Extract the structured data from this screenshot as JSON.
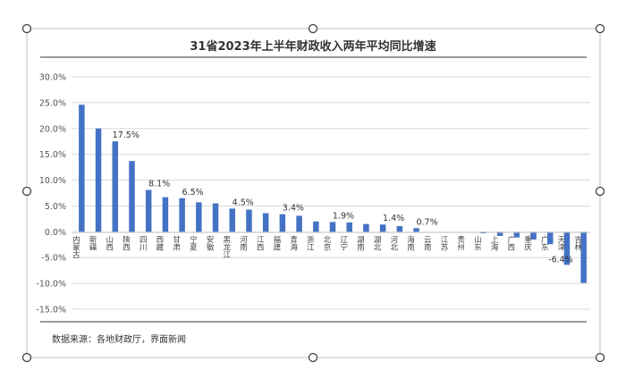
{
  "chart_data": {
    "type": "bar",
    "title": "31省2023年上半年财政收入两年平均同比增速",
    "source": "数据来源：各地财政厅，界面新闻",
    "categories": [
      "内蒙古",
      "新疆",
      "山西",
      "陕西",
      "四川",
      "西藏",
      "甘肃",
      "宁夏",
      "安徽",
      "黑龙江",
      "河南",
      "江西",
      "福建",
      "青海",
      "浙江",
      "北京",
      "辽宁",
      "湖南",
      "湖北",
      "河北",
      "海南",
      "云南",
      "江苏",
      "贵州",
      "山东",
      "上海",
      "广西",
      "重庆",
      "广东",
      "天津",
      "吉林"
    ],
    "values": [
      24.6,
      20.0,
      17.5,
      13.7,
      8.1,
      6.7,
      6.5,
      5.7,
      5.5,
      4.5,
      4.3,
      3.6,
      3.4,
      3.1,
      2.0,
      1.9,
      1.8,
      1.5,
      1.4,
      1.1,
      0.7,
      0.0,
      0.0,
      0.0,
      -0.3,
      -0.8,
      -1.1,
      -1.5,
      -2.4,
      -6.4,
      -9.9
    ],
    "value_labels": [
      "",
      "",
      "17.5%",
      "",
      "8.1%",
      "",
      "6.5%",
      "",
      "",
      "4.5%",
      "",
      "",
      "3.4%",
      "",
      "",
      "1.9%",
      "",
      "",
      "1.4%",
      "",
      "0.7%",
      "",
      "",
      "",
      "",
      "",
      "",
      "",
      "",
      "-6.4%",
      ""
    ],
    "y_ticks": [
      "30.0%",
      "25.0%",
      "20.0%",
      "15.0%",
      "10.0%",
      "5.0%",
      "0.0%",
      "-5.0%",
      "-10.0%",
      "-15.0%"
    ],
    "ylim": [
      -15,
      30
    ],
    "grid": true,
    "bar_color": "#4472c4"
  }
}
